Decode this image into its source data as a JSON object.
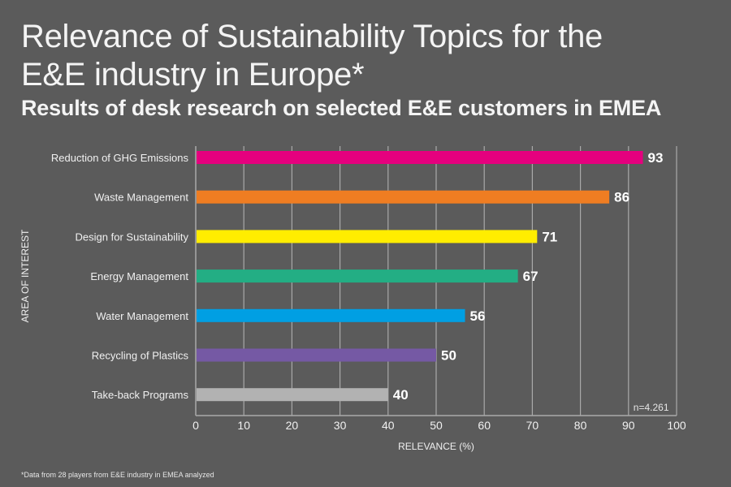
{
  "header": {
    "title_line1": "Relevance of Sustainability Topics for the",
    "title_line2": "E&E industry in Europe*",
    "subtitle": "Results of desk research on selected E&E customers in EMEA"
  },
  "footnote": "*Data from 28 players from E&E industry in EMEA analyzed",
  "chart_data": {
    "type": "bar",
    "orientation": "horizontal",
    "title": "Relevance of Sustainability Topics for the E&E industry in Europe*",
    "subtitle": "Results of desk research on selected E&E customers in EMEA",
    "categories": [
      "Reduction of GHG Emissions",
      "Waste Management",
      "Design for Sustainability",
      "Energy Management",
      "Water Management",
      "Recycling of Plastics",
      "Take-back Programs"
    ],
    "values": [
      93,
      86,
      71,
      67,
      56,
      50,
      40
    ],
    "colors": [
      "#e5007e",
      "#ef7d22",
      "#ffed00",
      "#23ae84",
      "#009fe3",
      "#7559a4",
      "#b2b2b2"
    ],
    "data_labels": [
      "93",
      "86",
      "71",
      "67",
      "56",
      "50",
      "40"
    ],
    "xlabel": "RELEVANCE (%)",
    "ylabel": "AREA OF INTEREST",
    "xlim": [
      0,
      100
    ],
    "xticks": [
      0,
      10,
      20,
      30,
      40,
      50,
      60,
      70,
      80,
      90,
      100
    ],
    "grid": true,
    "annotation": "n=4.261",
    "annotation_position": "bottom-right"
  }
}
